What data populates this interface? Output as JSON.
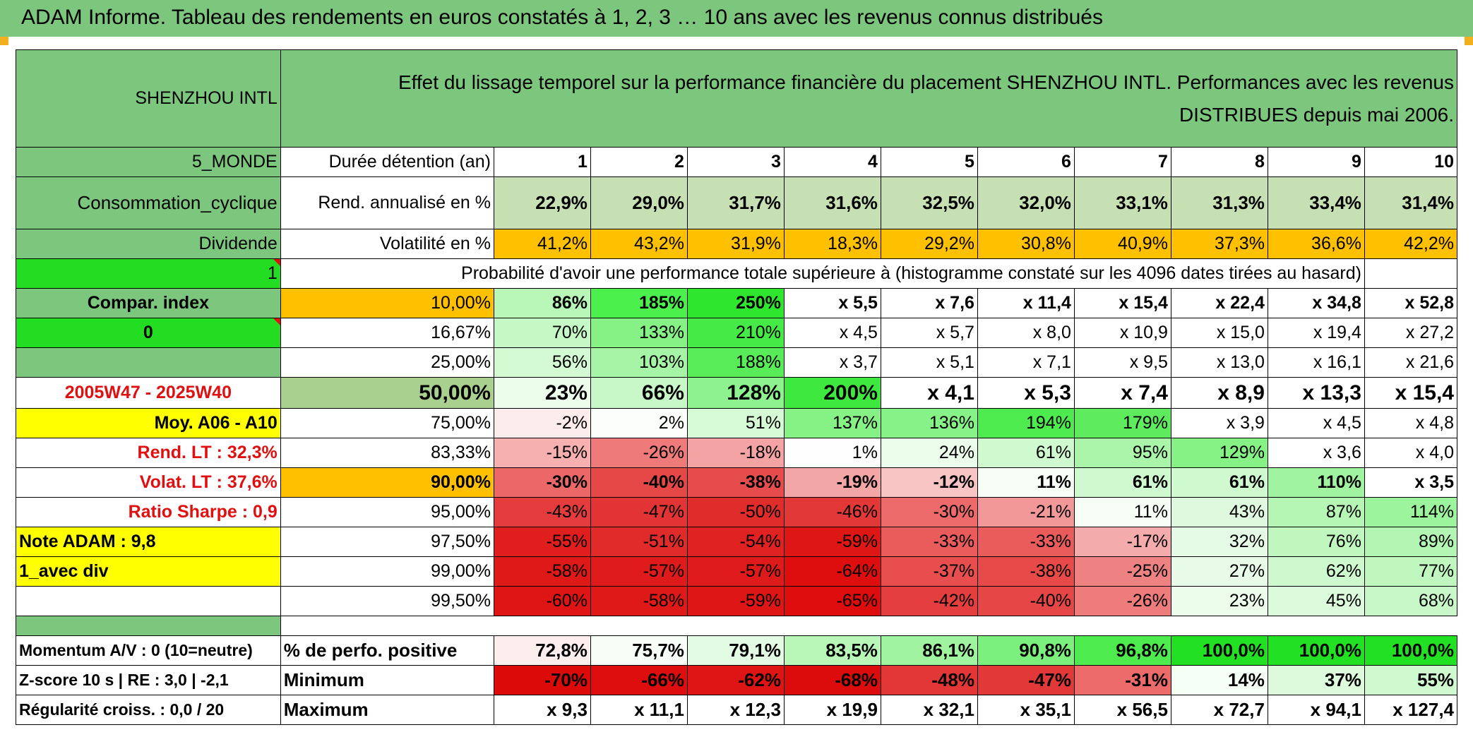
{
  "title": "ADAM Informe. Tableau des rendements en euros constatés à 1, 2, 3 … 10 ans avec les revenus connus distribués",
  "left": {
    "name": "SHENZHOU INTL",
    "region": "5_MONDE",
    "sector": "Consommation_cyclique",
    "income": "Dividende",
    "one": "1",
    "compar": "Compar. index",
    "zero": "0",
    "period": "2005W47 - 2025W40",
    "moy": "Moy. A06 - A10",
    "rend_lt": "Rend. LT :    32,3%",
    "volat_lt": "Volat. LT :    37,6%",
    "sharpe": "Ratio Sharpe :    0,9",
    "note": "Note ADAM : 9,8",
    "avec_div": "1_avec div",
    "momentum": "Momentum A/V : 0 (10=neutre)",
    "zscore": "Z-score 10 s | RE : 3,0 | -2,1",
    "regularite": "Régularité croiss. : 0,0 / 20"
  },
  "header_text": "Effet du lissage temporel sur la performance financière du placement SHENZHOU INTL. Performances avec les revenus DISTRIBUES depuis mai 2006.",
  "durations_label": "Durée détention (an)",
  "durations": [
    "1",
    "2",
    "3",
    "4",
    "5",
    "6",
    "7",
    "8",
    "9",
    "10"
  ],
  "rend_label": "Rend. annualisé en %",
  "rend": [
    "22,9%",
    "29,0%",
    "31,7%",
    "31,6%",
    "32,5%",
    "32,0%",
    "33,1%",
    "31,3%",
    "33,4%",
    "31,4%"
  ],
  "vol_label": "Volatilité en %",
  "vol": [
    "41,2%",
    "43,2%",
    "31,9%",
    "18,3%",
    "29,2%",
    "30,8%",
    "40,9%",
    "37,3%",
    "36,6%",
    "42,2%"
  ],
  "prob_label": "Probabilité d'avoir une performance totale supérieure à (histogramme constaté sur les 4096 dates tirées au hasard)",
  "pct_rows": [
    {
      "label": "10,00%",
      "values": [
        "86%",
        "185%",
        "250%",
        "x 5,5",
        "x 7,6",
        "x 11,4",
        "x 15,4",
        "x 22,4",
        "x 34,8",
        "x 52,8"
      ],
      "colors": [
        "#b8f7b8",
        "#4cf04c",
        "#2fe62f",
        "#ffffff",
        "#ffffff",
        "#ffffff",
        "#ffffff",
        "#ffffff",
        "#ffffff",
        "#ffffff"
      ]
    },
    {
      "label": "16,67%",
      "values": [
        "70%",
        "133%",
        "210%",
        "x 4,5",
        "x 5,7",
        "x 8,0",
        "x 10,9",
        "x 15,0",
        "x 19,4",
        "x 27,2"
      ],
      "colors": [
        "#c5f8c5",
        "#86f286",
        "#46ea46",
        "#ffffff",
        "#ffffff",
        "#ffffff",
        "#ffffff",
        "#ffffff",
        "#ffffff",
        "#ffffff"
      ]
    },
    {
      "label": "25,00%",
      "values": [
        "56%",
        "103%",
        "188%",
        "x 3,7",
        "x 5,1",
        "x 7,1",
        "x 9,5",
        "x 13,0",
        "x 16,1",
        "x 21,6"
      ],
      "colors": [
        "#d4fad4",
        "#a6f5a6",
        "#58ec58",
        "#ffffff",
        "#ffffff",
        "#ffffff",
        "#ffffff",
        "#ffffff",
        "#ffffff",
        "#ffffff"
      ]
    },
    {
      "label": "50,00%",
      "values": [
        "23%",
        "66%",
        "128%",
        "200%",
        "x 4,1",
        "x 5,3",
        "x 7,4",
        "x 8,9",
        "x 13,3",
        "x 15,4"
      ],
      "colors": [
        "#ecfdec",
        "#c8f8c8",
        "#8ef38e",
        "#3ee83e",
        "#ffffff",
        "#ffffff",
        "#ffffff",
        "#ffffff",
        "#ffffff",
        "#ffffff"
      ]
    },
    {
      "label": "75,00%",
      "values": [
        "-2%",
        "2%",
        "51%",
        "137%",
        "136%",
        "194%",
        "179%",
        "x 3,9",
        "x 4,5",
        "x 4,8"
      ],
      "colors": [
        "#fdecec",
        "#fbfefb",
        "#d6fad6",
        "#86f286",
        "#87f287",
        "#4eeb4e",
        "#5eec5e",
        "#ffffff",
        "#ffffff",
        "#ffffff"
      ]
    },
    {
      "label": "83,33%",
      "values": [
        "-15%",
        "-26%",
        "-18%",
        "1%",
        "24%",
        "61%",
        "95%",
        "129%",
        "x 3,6",
        "x 4,0"
      ],
      "colors": [
        "#f6b0b0",
        "#ee7a7a",
        "#f3a3a3",
        "#fdfefd",
        "#ebfdeb",
        "#cff9cf",
        "#aaf5aa",
        "#86f286",
        "#ffffff",
        "#ffffff"
      ]
    },
    {
      "label": "90,00%",
      "values": [
        "-30%",
        "-40%",
        "-38%",
        "-19%",
        "-12%",
        "11%",
        "61%",
        "61%",
        "110%",
        "x 3,5"
      ],
      "colors": [
        "#ec6868",
        "#e64848",
        "#e74c4c",
        "#f3a6a6",
        "#f8c4c4",
        "#f6fef6",
        "#cff9cf",
        "#cff9cf",
        "#a0f4a0",
        "#ffffff"
      ]
    },
    {
      "label": "95,00%",
      "values": [
        "-43%",
        "-47%",
        "-50%",
        "-46%",
        "-30%",
        "-21%",
        "11%",
        "43%",
        "87%",
        "114%"
      ],
      "colors": [
        "#e43c3c",
        "#e23434",
        "#e12c2c",
        "#e23838",
        "#ec6a6a",
        "#f29898",
        "#f6fef6",
        "#def9de",
        "#b5f6b5",
        "#9cf49c"
      ]
    },
    {
      "label": "97,50%",
      "values": [
        "-55%",
        "-51%",
        "-54%",
        "-59%",
        "-33%",
        "-33%",
        "-17%",
        "32%",
        "76%",
        "89%"
      ],
      "colors": [
        "#e01e1e",
        "#e12a2a",
        "#e02222",
        "#df1616",
        "#ea5c5c",
        "#ea5c5c",
        "#f4abab",
        "#e6fbe6",
        "#bff7bf",
        "#b3f6b3"
      ]
    },
    {
      "label": "99,00%",
      "values": [
        "-58%",
        "-57%",
        "-57%",
        "-64%",
        "-37%",
        "-38%",
        "-25%",
        "27%",
        "62%",
        "77%"
      ],
      "colors": [
        "#df1818",
        "#df1a1a",
        "#df1a1a",
        "#de0e0e",
        "#e84e4e",
        "#e84a4a",
        "#ee8282",
        "#e8fbe8",
        "#cef9ce",
        "#bff7bf"
      ]
    },
    {
      "label": "99,50%",
      "values": [
        "-60%",
        "-58%",
        "-59%",
        "-65%",
        "-42%",
        "-40%",
        "-26%",
        "23%",
        "45%",
        "68%"
      ],
      "colors": [
        "#df1414",
        "#df1818",
        "#df1616",
        "#de0c0c",
        "#e53e3e",
        "#e64646",
        "#ee7c7c",
        "#ecfdec",
        "#dcfadc",
        "#c8f8c8"
      ]
    }
  ],
  "pos_label": "% de perfo. positive",
  "pos": [
    "72,8%",
    "75,7%",
    "79,1%",
    "83,5%",
    "86,1%",
    "90,8%",
    "96,8%",
    "100,0%",
    "100,0%",
    "100,0%"
  ],
  "pos_colors": [
    "#fdeeee",
    "#f7fef7",
    "#e2fbe2",
    "#b8f7b8",
    "#a0f4a0",
    "#7cf07c",
    "#4eeb4e",
    "#22e022",
    "#22e022",
    "#22e022"
  ],
  "min_label": "Minimum",
  "min": [
    "-70%",
    "-66%",
    "-62%",
    "-68%",
    "-48%",
    "-47%",
    "-31%",
    "14%",
    "37%",
    "55%"
  ],
  "min_colors": [
    "#dd0a0a",
    "#de0e0e",
    "#df1414",
    "#dd0c0c",
    "#e33636",
    "#e33838",
    "#ec6a6a",
    "#f4fef4",
    "#ddfadd",
    "#cff9cf"
  ],
  "max_label": "Maximum",
  "max": [
    "x 9,3",
    "x 11,1",
    "x 12,3",
    "x 19,9",
    "x 32,1",
    "x 35,1",
    "x 56,5",
    "x 72,7",
    "x 94,1",
    "x 127,4"
  ],
  "colors": {
    "header_green": "#7dc67d",
    "bright_green": "#22dd22",
    "orange": "#ffc000",
    "yellow": "#ffff00",
    "red_text": "#e01010"
  }
}
